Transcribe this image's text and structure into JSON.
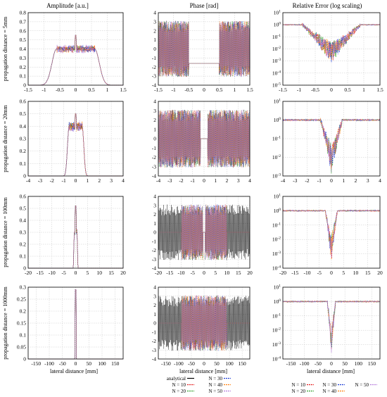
{
  "chart_data": {
    "type": "line",
    "column_titles": [
      "Amplitude [a.u.]",
      "Phase [rad]",
      "Relative Error (log scaling)"
    ],
    "row_labels": [
      "propagation distance = 5mm",
      "propagation distance = 20mm",
      "propagation distance = 100mm",
      "propagation distance = 1000mm"
    ],
    "xlabel": "lateral distance [mm]",
    "series_names": [
      "analytical",
      "N = 10",
      "N = 20",
      "N = 30",
      "N = 40",
      "N = 50"
    ],
    "series_colors": [
      "#000000",
      "#e41a1c",
      "#33a02c",
      "#1f3fd6",
      "#ff7f0e",
      "#b57edc"
    ],
    "grid": true,
    "rows": [
      {
        "xlim": [
          -1.5,
          1.5
        ],
        "xticks": [
          "-1.5",
          "-1",
          "-0.5",
          "0",
          "0.5",
          "1",
          "1.5"
        ],
        "amplitude": {
          "ylim": [
            0,
            0.8
          ],
          "yticks": [
            "0",
            "0.1",
            "0.2",
            "0.3",
            "0.4",
            "0.5",
            "0.6",
            "0.7",
            "0.8"
          ],
          "plateau_half_width": 0.6,
          "plateau": 0.4,
          "peak": 0.55
        },
        "phase": {
          "ylim": [
            -4,
            4
          ],
          "yticks": [
            "-4",
            "-3",
            "-2",
            "-1",
            "0",
            "1",
            "2",
            "3",
            "4"
          ],
          "flat_half_width": 0.5,
          "flat_value": -1.6
        },
        "error": {
          "ylog": [
            -5,
            1
          ],
          "yticks": [
            "10^-5",
            "10^-4",
            "10^-3",
            "10^-2",
            "10^-1",
            "10^0",
            "10^1"
          ],
          "dip_half_width": 0.9,
          "min": -3
        }
      },
      {
        "xlim": [
          -4,
          4
        ],
        "xticks": [
          "-4",
          "-3",
          "-2",
          "-1",
          "0",
          "1",
          "2",
          "3",
          "4"
        ],
        "amplitude": {
          "ylim": [
            0,
            0.6
          ],
          "yticks": [
            "0",
            "0.1",
            "0.2",
            "0.3",
            "0.4",
            "0.5",
            "0.6"
          ],
          "plateau_half_width": 0.55,
          "plateau": 0.4,
          "peak": 0.5
        },
        "phase": {
          "ylim": [
            -4,
            4
          ],
          "yticks": [
            "-4",
            "-3",
            "-2",
            "-1",
            "0",
            "1",
            "2",
            "3",
            "4"
          ],
          "flat_half_width": 0.3,
          "flat_value": 0
        },
        "error": {
          "ylog": [
            -3,
            1
          ],
          "yticks": [
            "10^-3",
            "10^-2",
            "10^-1",
            "10^0",
            "10^1"
          ],
          "dip_half_width": 0.9,
          "min": -2.8
        }
      },
      {
        "xlim": [
          -20,
          20
        ],
        "xticks": [
          "-20",
          "-15",
          "-10",
          "-5",
          "0",
          "5",
          "10",
          "15",
          "20"
        ],
        "amplitude": {
          "ylim": [
            0,
            0.6
          ],
          "yticks": [
            "0",
            "0.1",
            "0.2",
            "0.3",
            "0.4",
            "0.5",
            "0.6"
          ],
          "plateau_half_width": 0.6,
          "plateau": 0.3,
          "peak": 0.52
        },
        "phase": {
          "ylim": [
            -4,
            4
          ],
          "yticks": [
            "-4",
            "-3",
            "-2",
            "-1",
            "0",
            "1",
            "2",
            "3",
            "4"
          ],
          "flat_half_width": 0.5,
          "flat_value": 0,
          "band_half_width": 10
        },
        "error": {
          "ylog": [
            -4,
            1
          ],
          "yticks": [
            "10^-4",
            "10^-3",
            "10^-2",
            "10^-1",
            "10^0",
            "10^1"
          ],
          "dip_half_width": 2.5,
          "min": -3.6
        }
      },
      {
        "xlim": [
          -180,
          180
        ],
        "xticks": [
          "-150",
          "-100",
          "-50",
          "0",
          "50",
          "100",
          "150"
        ],
        "amplitude": {
          "ylim": [
            0,
            0.3
          ],
          "yticks": [
            "0",
            "0.05",
            "0.1",
            "0.15",
            "0.2",
            "0.25",
            "0.3"
          ],
          "plateau_half_width": 2,
          "plateau": 0.05,
          "peak": 0.29
        },
        "phase": {
          "ylim": [
            -4,
            4
          ],
          "yticks": [
            "-4",
            "-3",
            "-2",
            "-1",
            "0",
            "1",
            "2",
            "3",
            "4"
          ],
          "flat_half_width": 0,
          "flat_value": 0,
          "band_half_width": 90
        },
        "error": {
          "ylog": [
            -4,
            1
          ],
          "yticks": [
            "10^-4",
            "10^-3",
            "10^-2",
            "10^-1",
            "10^0",
            "10^1"
          ],
          "dip_half_width": 15,
          "min": -3.8
        }
      }
    ]
  }
}
